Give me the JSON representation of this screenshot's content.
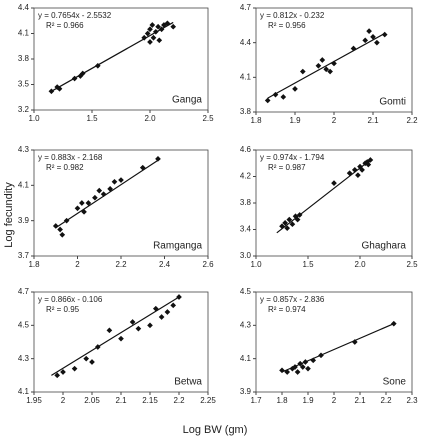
{
  "y_label": "Log fecundity",
  "x_label": "Log BW (gm)",
  "chart_data": [
    {
      "type": "scatter",
      "title": "Ganga",
      "equation": "y = 0.7654x - 2.5532",
      "r_squared": "R² = 0.966",
      "x": [
        1.15,
        1.2,
        1.22,
        1.35,
        1.4,
        1.42,
        1.55,
        1.95,
        1.98,
        2.0,
        2.02,
        2.03,
        2.05,
        2.07,
        2.08,
        2.1,
        2.12,
        2.15,
        2.2,
        2.0
      ],
      "values": [
        3.42,
        3.47,
        3.45,
        3.57,
        3.6,
        3.63,
        3.72,
        4.05,
        4.1,
        4.15,
        4.2,
        4.05,
        4.12,
        4.18,
        4.02,
        4.15,
        4.2,
        4.22,
        4.18,
        4.0
      ],
      "trendline": {
        "x": [
          1.15,
          2.2
        ],
        "values": [
          3.42,
          4.23
        ]
      },
      "color": "#111111",
      "xlim": [
        1.0,
        2.5
      ],
      "ylim": [
        3.2,
        4.4
      ],
      "xticks": [
        {
          "value": 1,
          "label": "1.0"
        },
        1.5,
        {
          "value": 2,
          "label": "2.0"
        },
        2.5
      ],
      "yticks": [
        3.2,
        3.5,
        3.8,
        4.1,
        4.4
      ]
    },
    {
      "type": "scatter",
      "title": "Gomti",
      "equation": "y = 0.812x - 0.232",
      "r_squared": "R² = 0.956",
      "x": [
        1.83,
        1.85,
        1.87,
        1.9,
        1.92,
        1.96,
        1.97,
        1.98,
        1.99,
        2.0,
        2.05,
        2.08,
        2.09,
        2.1,
        2.11,
        2.13
      ],
      "values": [
        3.9,
        3.95,
        3.93,
        4.0,
        4.15,
        4.2,
        4.25,
        4.17,
        4.15,
        4.22,
        4.35,
        4.42,
        4.5,
        4.45,
        4.4,
        4.47
      ],
      "trendline": {
        "x": [
          1.83,
          2.13
        ],
        "values": [
          3.92,
          4.48
        ]
      },
      "color": "#111111",
      "xlim": [
        1.8,
        2.2
      ],
      "ylim": [
        3.8,
        4.7
      ],
      "xticks": [
        1.8,
        1.9,
        2,
        2.1,
        2.2
      ],
      "yticks": [
        3.8,
        4.1,
        4.4,
        4.7
      ]
    },
    {
      "type": "scatter",
      "title": "Ramganga",
      "equation": "y = 0.883x - 2.168",
      "r_squared": "R² = 0.982",
      "x": [
        1.9,
        1.92,
        1.93,
        1.95,
        2.0,
        2.02,
        2.03,
        2.05,
        2.08,
        2.1,
        2.12,
        2.15,
        2.17,
        2.2,
        2.3,
        2.37
      ],
      "values": [
        3.87,
        3.85,
        3.82,
        3.9,
        3.97,
        4.0,
        3.95,
        4.0,
        4.03,
        4.07,
        4.05,
        4.08,
        4.12,
        4.13,
        4.2,
        4.25
      ],
      "trendline": {
        "x": [
          1.9,
          2.38
        ],
        "values": [
          3.86,
          4.25
        ]
      },
      "color": "#111111",
      "xlim": [
        1.8,
        2.6
      ],
      "ylim": [
        3.7,
        4.3
      ],
      "xticks": [
        1.8,
        2,
        2.2,
        2.4,
        2.6
      ],
      "yticks": [
        3.7,
        3.9,
        4.1,
        4.3
      ]
    },
    {
      "type": "scatter",
      "title": "Ghaghara",
      "equation": "y = 0.974x - 1.794",
      "r_squared": "R² = 0.987",
      "x": [
        1.25,
        1.28,
        1.3,
        1.32,
        1.35,
        1.38,
        1.4,
        1.42,
        1.75,
        1.9,
        1.95,
        1.98,
        2.0,
        2.02,
        2.05,
        2.07,
        2.08,
        2.1
      ],
      "values": [
        3.45,
        3.5,
        3.42,
        3.55,
        3.48,
        3.6,
        3.55,
        3.62,
        4.1,
        4.25,
        4.3,
        4.22,
        4.35,
        4.3,
        4.4,
        4.42,
        4.38,
        4.45
      ],
      "trendline": {
        "x": [
          1.2,
          2.1
        ],
        "values": [
          3.35,
          4.45
        ]
      },
      "color": "#111111",
      "xlim": [
        1.0,
        2.5
      ],
      "ylim": [
        3.0,
        4.6
      ],
      "xticks": [
        {
          "value": 1,
          "label": "1.0"
        },
        1.5,
        {
          "value": 2,
          "label": "2.0"
        },
        2.5
      ],
      "yticks": [
        {
          "value": 3,
          "label": "3.0"
        },
        3.4,
        3.8,
        4.2,
        4.6
      ]
    },
    {
      "type": "scatter",
      "title": "Betwa",
      "equation": "y = 0.866x - 0.106",
      "r_squared": "R² = 0.95",
      "x": [
        1.99,
        2.0,
        2.02,
        2.04,
        2.05,
        2.06,
        2.08,
        2.1,
        2.12,
        2.13,
        2.15,
        2.16,
        2.17,
        2.18,
        2.19,
        2.2
      ],
      "values": [
        4.2,
        4.22,
        4.24,
        4.3,
        4.28,
        4.37,
        4.47,
        4.42,
        4.52,
        4.48,
        4.5,
        4.6,
        4.55,
        4.58,
        4.62,
        4.67
      ],
      "trendline": {
        "x": [
          1.98,
          2.2
        ],
        "values": [
          4.2,
          4.67
        ]
      },
      "color": "#111111",
      "xlim": [
        1.95,
        2.25
      ],
      "ylim": [
        4.1,
        4.7
      ],
      "xticks": [
        1.95,
        2,
        2.05,
        2.1,
        2.15,
        2.2,
        2.25
      ],
      "yticks": [
        4.1,
        4.3,
        4.5,
        4.7
      ]
    },
    {
      "type": "scatter",
      "title": "Sone",
      "equation": "y = 0.857x - 2.836",
      "r_squared": "R² = 0.974",
      "x": [
        1.8,
        1.82,
        1.84,
        1.85,
        1.86,
        1.87,
        1.88,
        1.89,
        1.9,
        1.92,
        1.95,
        2.08,
        2.23
      ],
      "values": [
        4.03,
        4.02,
        4.04,
        4.05,
        4.02,
        4.07,
        4.05,
        4.08,
        4.04,
        4.09,
        4.12,
        4.2,
        4.31
      ],
      "trendline": {
        "x": [
          1.8,
          2.23
        ],
        "values": [
          4.02,
          4.31
        ]
      },
      "color": "#111111",
      "xlim": [
        1.7,
        2.3
      ],
      "ylim": [
        3.9,
        4.5
      ],
      "xticks": [
        1.7,
        1.8,
        1.9,
        2,
        2.1,
        2.2,
        2.3
      ],
      "yticks": [
        3.9,
        4.1,
        4.3,
        4.5
      ]
    }
  ]
}
